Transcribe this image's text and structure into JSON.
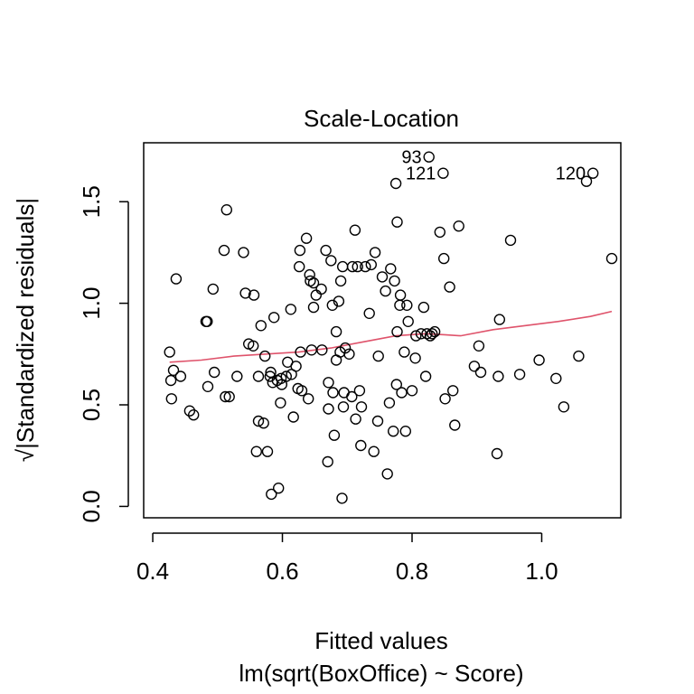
{
  "chart_data": {
    "type": "scatter",
    "title": "Scale-Location",
    "xlabel": "Fitted values",
    "subtitle": "lm(sqrt(BoxOffice) ~ Score)",
    "ylabel": "√|Standardized residuals|",
    "xlim": [
      0.386,
      1.122
    ],
    "ylim": [
      -0.056,
      1.79
    ],
    "x_ticks": [
      0.4,
      0.6,
      0.8,
      1.0
    ],
    "x_tick_labels": [
      "0.4",
      "0.6",
      "0.8",
      "1.0"
    ],
    "y_ticks": [
      0.0,
      0.5,
      1.0,
      1.5
    ],
    "y_tick_labels": [
      "0.0",
      "0.5",
      "1.0",
      "1.5"
    ],
    "colors": {
      "points": "#000000",
      "smooth": "#DF536B"
    },
    "labeled_points": [
      {
        "label": "93",
        "x": 0.826,
        "y": 1.72
      },
      {
        "label": "121",
        "x": 0.848,
        "y": 1.64
      },
      {
        "label": "120",
        "x": 1.079,
        "y": 1.64
      }
    ],
    "points": [
      [
        0.426,
        0.76
      ],
      [
        0.428,
        0.62
      ],
      [
        0.429,
        0.53
      ],
      [
        0.432,
        0.67
      ],
      [
        0.436,
        1.12
      ],
      [
        0.443,
        0.64
      ],
      [
        0.457,
        0.47
      ],
      [
        0.463,
        0.45
      ],
      [
        0.482,
        0.91
      ],
      [
        0.484,
        0.91
      ],
      [
        0.485,
        0.59
      ],
      [
        0.493,
        1.07
      ],
      [
        0.495,
        0.66
      ],
      [
        0.51,
        1.26
      ],
      [
        0.512,
        0.54
      ],
      [
        0.514,
        1.46
      ],
      [
        0.518,
        0.54
      ],
      [
        0.53,
        0.64
      ],
      [
        0.54,
        1.25
      ],
      [
        0.543,
        1.05
      ],
      [
        0.548,
        0.8
      ],
      [
        0.555,
        0.79
      ],
      [
        0.556,
        1.04
      ],
      [
        0.56,
        0.27
      ],
      [
        0.563,
        0.64
      ],
      [
        0.563,
        0.42
      ],
      [
        0.567,
        0.89
      ],
      [
        0.571,
        0.41
      ],
      [
        0.573,
        0.74
      ],
      [
        0.577,
        0.27
      ],
      [
        0.581,
        0.64
      ],
      [
        0.582,
        0.66
      ],
      [
        0.583,
        0.06
      ],
      [
        0.585,
        0.61
      ],
      [
        0.587,
        0.93
      ],
      [
        0.592,
        0.62
      ],
      [
        0.594,
        0.09
      ],
      [
        0.597,
        0.51
      ],
      [
        0.598,
        0.63
      ],
      [
        0.599,
        0.6
      ],
      [
        0.606,
        0.64
      ],
      [
        0.608,
        0.71
      ],
      [
        0.613,
        0.97
      ],
      [
        0.614,
        0.65
      ],
      [
        0.617,
        0.44
      ],
      [
        0.621,
        0.69
      ],
      [
        0.624,
        0.58
      ],
      [
        0.626,
        1.18
      ],
      [
        0.627,
        1.26
      ],
      [
        0.628,
        0.76
      ],
      [
        0.63,
        0.57
      ],
      [
        0.637,
        1.32
      ],
      [
        0.64,
        0.53
      ],
      [
        0.642,
        1.14
      ],
      [
        0.643,
        1.11
      ],
      [
        0.645,
        0.77
      ],
      [
        0.648,
        1.1
      ],
      [
        0.648,
        0.98
      ],
      [
        0.652,
        1.04
      ],
      [
        0.66,
        1.07
      ],
      [
        0.661,
        0.77
      ],
      [
        0.667,
        1.26
      ],
      [
        0.67,
        0.22
      ],
      [
        0.671,
        0.61
      ],
      [
        0.671,
        0.48
      ],
      [
        0.675,
        1.21
      ],
      [
        0.677,
        0.99
      ],
      [
        0.678,
        0.56
      ],
      [
        0.68,
        0.35
      ],
      [
        0.683,
        0.86
      ],
      [
        0.683,
        0.72
      ],
      [
        0.687,
        1.01
      ],
      [
        0.689,
        0.76
      ],
      [
        0.69,
        1.11
      ],
      [
        0.692,
        0.04
      ],
      [
        0.693,
        1.18
      ],
      [
        0.694,
        0.49
      ],
      [
        0.695,
        0.56
      ],
      [
        0.697,
        0.78
      ],
      [
        0.703,
        0.75
      ],
      [
        0.707,
        0.54
      ],
      [
        0.708,
        1.18
      ],
      [
        0.712,
        1.36
      ],
      [
        0.713,
        0.43
      ],
      [
        0.716,
        1.18
      ],
      [
        0.719,
        0.57
      ],
      [
        0.721,
        0.3
      ],
      [
        0.722,
        0.49
      ],
      [
        0.728,
        1.18
      ],
      [
        0.734,
        0.95
      ],
      [
        0.737,
        1.19
      ],
      [
        0.741,
        0.27
      ],
      [
        0.743,
        1.25
      ],
      [
        0.747,
        0.42
      ],
      [
        0.748,
        0.74
      ],
      [
        0.754,
        1.13
      ],
      [
        0.759,
        1.06
      ],
      [
        0.762,
        0.16
      ],
      [
        0.765,
        0.51
      ],
      [
        0.767,
        1.17
      ],
      [
        0.771,
        0.37
      ],
      [
        0.773,
        1.11
      ],
      [
        0.775,
        1.59
      ],
      [
        0.776,
        0.6
      ],
      [
        0.777,
        0.86
      ],
      [
        0.777,
        1.4
      ],
      [
        0.781,
        0.99
      ],
      [
        0.782,
        1.04
      ],
      [
        0.784,
        0.56
      ],
      [
        0.788,
        0.76
      ],
      [
        0.79,
        0.37
      ],
      [
        0.792,
        0.99
      ],
      [
        0.794,
        0.91
      ],
      [
        0.8,
        0.57
      ],
      [
        0.805,
        0.73
      ],
      [
        0.806,
        0.84
      ],
      [
        0.814,
        0.85
      ],
      [
        0.818,
        0.98
      ],
      [
        0.821,
        0.64
      ],
      [
        0.823,
        0.85
      ],
      [
        0.828,
        0.84
      ],
      [
        0.831,
        0.85
      ],
      [
        0.835,
        0.86
      ],
      [
        0.843,
        1.35
      ],
      [
        0.849,
        1.22
      ],
      [
        0.851,
        0.53
      ],
      [
        0.858,
        1.08
      ],
      [
        0.863,
        0.57
      ],
      [
        0.866,
        0.4
      ],
      [
        0.872,
        1.38
      ],
      [
        0.896,
        0.69
      ],
      [
        0.903,
        0.79
      ],
      [
        0.906,
        0.66
      ],
      [
        0.931,
        0.26
      ],
      [
        0.933,
        0.64
      ],
      [
        0.935,
        0.92
      ],
      [
        0.952,
        1.31
      ],
      [
        0.966,
        0.65
      ],
      [
        0.996,
        0.72
      ],
      [
        1.022,
        0.63
      ],
      [
        1.034,
        0.49
      ],
      [
        1.057,
        0.74
      ],
      [
        1.069,
        1.6
      ],
      [
        1.108,
        1.22
      ]
    ],
    "smooth_line": [
      [
        0.426,
        0.71
      ],
      [
        0.475,
        0.72
      ],
      [
        0.525,
        0.74
      ],
      [
        0.575,
        0.75
      ],
      [
        0.625,
        0.76
      ],
      [
        0.675,
        0.78
      ],
      [
        0.725,
        0.81
      ],
      [
        0.775,
        0.84
      ],
      [
        0.82,
        0.85
      ],
      [
        0.85,
        0.845
      ],
      [
        0.875,
        0.84
      ],
      [
        0.925,
        0.87
      ],
      [
        0.975,
        0.89
      ],
      [
        1.025,
        0.91
      ],
      [
        1.075,
        0.935
      ],
      [
        1.108,
        0.96
      ]
    ]
  }
}
